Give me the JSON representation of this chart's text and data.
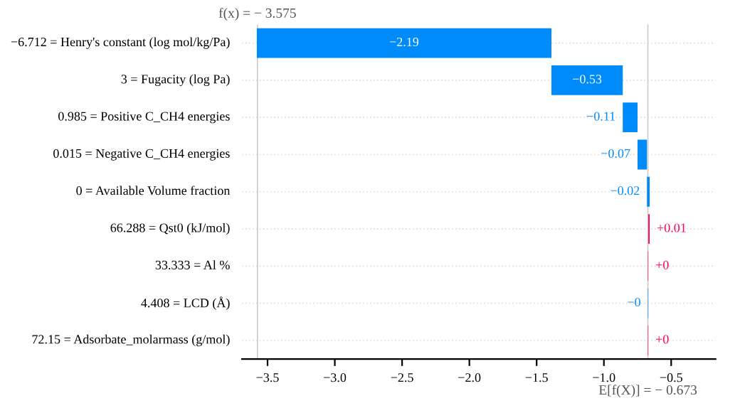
{
  "chart_data": {
    "type": "bar",
    "orientation": "horizontal",
    "categories": [
      "−6.712 = Henry's constant (log mol/kg/Pa)",
      "3 = Fugacity (log Pa)",
      "0.985 = Positive C_CH4 energies",
      "0.015 = Negative C_CH4 energies",
      "0 = Available Volume fraction",
      "66.288 = Qst0 (kJ/mol)",
      "33.333 = Al %",
      "4.408 = LCD (Å)",
      "72.15 = Adsorbate_molarmass (g/mol)"
    ],
    "values": [
      -2.19,
      -0.53,
      -0.11,
      -0.07,
      -0.02,
      0.01,
      0.003,
      -0.003,
      0.003
    ],
    "base": [
      -1.39,
      -0.86,
      -0.75,
      -0.68,
      -0.66,
      -0.67,
      -0.673,
      -0.67,
      -0.673
    ],
    "colors": [
      "#008bfb",
      "#008bfb",
      "#008bfb",
      "#008bfb",
      "#008bfb",
      "#ff0051",
      "#ff0051",
      "#008bfb",
      "#ff0051"
    ],
    "value_labels": [
      "−2.19",
      "−0.53",
      "−0.11",
      "−0.07",
      "−0.02",
      "+0.01",
      "+0",
      "−0",
      "+0"
    ],
    "xlim": [
      -3.69,
      -0.17
    ],
    "xticks": [
      {
        "value": -3.5,
        "label": "−3.5"
      },
      {
        "value": -3.0,
        "label": "−3.0"
      },
      {
        "value": -2.5,
        "label": "−2.5"
      },
      {
        "value": -2.0,
        "label": "−2.0"
      },
      {
        "value": -1.5,
        "label": "−1.5"
      },
      {
        "value": -1.0,
        "label": "−1.0"
      },
      {
        "value": -0.5,
        "label": "−0.5"
      }
    ],
    "ref_lines": [
      {
        "axis": "x",
        "value": -3.575,
        "label": "f(x) = − 3.575",
        "color": "#cccccc"
      },
      {
        "axis": "x",
        "value": -0.673,
        "label": "E[f(X)] = − 0.673",
        "color": "#cccccc"
      }
    ],
    "grid": "y"
  }
}
